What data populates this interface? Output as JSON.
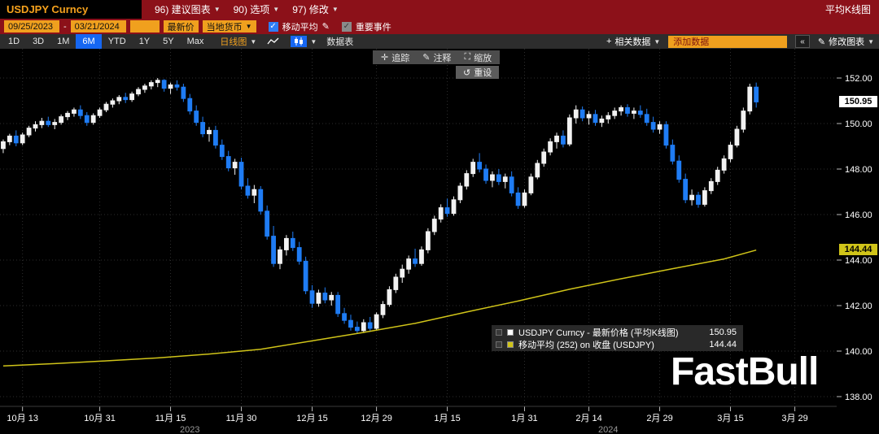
{
  "header": {
    "security": "USDJPY Curncy",
    "menus": [
      "96) 建议图表",
      "90) 选项",
      "97) 修改"
    ],
    "chart_style": "平均K线图"
  },
  "settings_bar": {
    "date_from": "09/25/2023",
    "date_to": "03/21/2024",
    "period_box": "",
    "price_source": "最新价",
    "currency": "当地货币",
    "ma_label": "移动平均",
    "events_label": "重要事件"
  },
  "toolbar": {
    "ranges": [
      "1D",
      "3D",
      "1M",
      "6M",
      "YTD",
      "1Y",
      "5Y",
      "Max"
    ],
    "active_range": "6M",
    "interval": "日线图",
    "table_label": "数据表",
    "related_data": "相关数据",
    "add_data": "添加数据",
    "collapse": "«",
    "modify_chart": "修改图表"
  },
  "chart_overlay_toolbar": {
    "track": "追踪",
    "annotate": "注释",
    "zoom": "缩放",
    "reset": "重设"
  },
  "legend": {
    "series1_label": "USDJPY Curncy - 最新价格 (平均K线图)",
    "series1_value": "150.95",
    "series2_label": "移动平均 (252) on 收盘 (USDJPY)",
    "series2_value": "144.44"
  },
  "axis_boxes": {
    "last_price": "150.95",
    "ma_value": "144.44"
  },
  "watermark": "FastBull",
  "colors": {
    "up": "#f2f2f2",
    "down": "#1f7cf4",
    "ma": "#d0c419",
    "amber": "#f0a01e",
    "active_blue": "#1667f2"
  },
  "chart_data": {
    "type": "candlestick",
    "style": "heikin-ashi",
    "symbol": "USDJPY Curncy",
    "date_range": [
      "09/25/2023",
      "03/21/2024"
    ],
    "last_price": 150.95,
    "ma_period": 252,
    "ma_last": 144.44,
    "ylim": [
      138.0,
      152.0
    ],
    "y_ticks": [
      "152.00",
      "150.00",
      "148.00",
      "146.00",
      "144.00",
      "142.00",
      "140.00",
      "138.00"
    ],
    "x_ticks": {
      "labels": [
        "10月 13",
        "10月 31",
        "11月 15",
        "11月 30",
        "12月 15",
        "12月 29",
        "1月 15",
        "1月 31",
        "2月 14",
        "2月 29",
        "3月 15",
        "3月 29"
      ],
      "indices": [
        3,
        15,
        26,
        37,
        48,
        58,
        69,
        81,
        91,
        102,
        113,
        123
      ]
    },
    "year_labels": [
      {
        "text": "2023",
        "index": 29
      },
      {
        "text": "2024",
        "index": 94
      }
    ],
    "total_slots": 130,
    "candles": [
      [
        148.9,
        149.3,
        148.7,
        149.2
      ],
      [
        149.2,
        149.55,
        149.05,
        149.45
      ],
      [
        149.45,
        149.7,
        149.0,
        149.15
      ],
      [
        149.15,
        149.6,
        149.05,
        149.5
      ],
      [
        149.5,
        149.9,
        149.4,
        149.8
      ],
      [
        149.8,
        150.1,
        149.65,
        149.95
      ],
      [
        149.95,
        150.25,
        149.8,
        150.1
      ],
      [
        150.1,
        150.3,
        149.85,
        149.95
      ],
      [
        149.95,
        150.2,
        149.75,
        150.05
      ],
      [
        150.05,
        150.4,
        149.95,
        150.3
      ],
      [
        150.3,
        150.55,
        150.15,
        150.45
      ],
      [
        150.45,
        150.7,
        150.3,
        150.6
      ],
      [
        150.6,
        150.8,
        150.2,
        150.35
      ],
      [
        150.35,
        150.5,
        149.9,
        150.05
      ],
      [
        150.05,
        150.45,
        149.95,
        150.35
      ],
      [
        150.35,
        150.7,
        150.25,
        150.6
      ],
      [
        150.6,
        150.95,
        150.5,
        150.85
      ],
      [
        150.85,
        151.1,
        150.7,
        151.0
      ],
      [
        151.0,
        151.25,
        150.85,
        151.15
      ],
      [
        151.15,
        151.35,
        150.9,
        151.05
      ],
      [
        151.05,
        151.4,
        150.95,
        151.3
      ],
      [
        151.3,
        151.6,
        151.2,
        151.5
      ],
      [
        151.5,
        151.75,
        151.35,
        151.65
      ],
      [
        151.65,
        151.9,
        151.5,
        151.8
      ],
      [
        151.8,
        152.0,
        151.6,
        151.9
      ],
      [
        151.9,
        151.95,
        151.4,
        151.55
      ],
      [
        151.55,
        151.8,
        151.3,
        151.7
      ],
      [
        151.7,
        151.9,
        151.45,
        151.6
      ],
      [
        151.6,
        151.75,
        150.95,
        151.1
      ],
      [
        151.1,
        151.3,
        150.4,
        150.55
      ],
      [
        150.55,
        150.8,
        149.9,
        150.05
      ],
      [
        150.05,
        150.3,
        149.4,
        149.55
      ],
      [
        149.55,
        149.85,
        149.2,
        149.7
      ],
      [
        149.7,
        149.9,
        148.9,
        149.05
      ],
      [
        149.05,
        149.3,
        148.4,
        148.55
      ],
      [
        148.55,
        148.8,
        147.9,
        148.05
      ],
      [
        148.05,
        148.45,
        147.75,
        148.3
      ],
      [
        148.3,
        148.5,
        147.1,
        147.25
      ],
      [
        147.25,
        147.6,
        146.7,
        146.85
      ],
      [
        146.85,
        147.3,
        146.5,
        147.1
      ],
      [
        147.1,
        147.25,
        146.0,
        146.15
      ],
      [
        146.15,
        146.4,
        144.9,
        145.05
      ],
      [
        145.05,
        145.5,
        143.7,
        143.85
      ],
      [
        143.85,
        144.6,
        143.6,
        144.45
      ],
      [
        144.45,
        145.1,
        144.2,
        144.95
      ],
      [
        144.95,
        145.25,
        144.4,
        144.55
      ],
      [
        144.55,
        144.8,
        143.8,
        143.95
      ],
      [
        143.95,
        144.15,
        142.5,
        142.65
      ],
      [
        142.65,
        142.9,
        141.9,
        142.1
      ],
      [
        142.1,
        142.7,
        141.95,
        142.55
      ],
      [
        142.55,
        142.8,
        142.1,
        142.25
      ],
      [
        142.25,
        142.6,
        142.0,
        142.45
      ],
      [
        142.45,
        142.6,
        141.5,
        141.65
      ],
      [
        141.65,
        141.9,
        141.2,
        141.35
      ],
      [
        141.35,
        141.6,
        140.9,
        141.05
      ],
      [
        141.05,
        141.3,
        140.75,
        140.9
      ],
      [
        140.9,
        141.4,
        140.8,
        141.25
      ],
      [
        141.25,
        141.5,
        140.85,
        141.0
      ],
      [
        141.0,
        141.7,
        140.9,
        141.6
      ],
      [
        141.6,
        142.2,
        141.45,
        142.05
      ],
      [
        142.05,
        142.85,
        141.95,
        142.7
      ],
      [
        142.7,
        143.4,
        142.55,
        143.25
      ],
      [
        143.25,
        143.8,
        143.0,
        143.6
      ],
      [
        143.6,
        144.2,
        143.4,
        144.05
      ],
      [
        144.05,
        144.5,
        143.7,
        143.85
      ],
      [
        143.85,
        144.6,
        143.75,
        144.45
      ],
      [
        144.45,
        145.4,
        144.3,
        145.25
      ],
      [
        145.25,
        145.95,
        145.1,
        145.8
      ],
      [
        145.8,
        146.45,
        145.65,
        146.3
      ],
      [
        146.3,
        146.7,
        145.9,
        146.05
      ],
      [
        146.05,
        146.8,
        145.95,
        146.65
      ],
      [
        146.65,
        147.4,
        146.5,
        147.25
      ],
      [
        147.25,
        147.95,
        147.1,
        147.8
      ],
      [
        147.8,
        148.45,
        147.65,
        148.3
      ],
      [
        148.3,
        148.7,
        147.85,
        148.0
      ],
      [
        148.0,
        148.2,
        147.35,
        147.5
      ],
      [
        147.5,
        147.9,
        147.2,
        147.75
      ],
      [
        147.75,
        148.0,
        147.3,
        147.45
      ],
      [
        147.45,
        147.8,
        147.15,
        147.65
      ],
      [
        147.65,
        147.9,
        146.8,
        146.95
      ],
      [
        146.95,
        147.2,
        146.25,
        146.4
      ],
      [
        146.4,
        147.1,
        146.3,
        146.95
      ],
      [
        146.95,
        147.8,
        146.85,
        147.65
      ],
      [
        147.65,
        148.4,
        147.55,
        148.25
      ],
      [
        148.25,
        148.9,
        148.1,
        148.75
      ],
      [
        148.75,
        149.35,
        148.6,
        149.2
      ],
      [
        149.2,
        149.6,
        148.9,
        149.45
      ],
      [
        149.45,
        149.7,
        148.95,
        149.1
      ],
      [
        149.1,
        150.4,
        149.0,
        150.25
      ],
      [
        150.25,
        150.8,
        150.0,
        150.6
      ],
      [
        150.6,
        150.75,
        150.1,
        150.25
      ],
      [
        150.25,
        150.55,
        149.95,
        150.4
      ],
      [
        150.4,
        150.6,
        149.9,
        150.05
      ],
      [
        150.05,
        150.35,
        149.85,
        150.2
      ],
      [
        150.2,
        150.5,
        150.0,
        150.35
      ],
      [
        150.35,
        150.7,
        150.2,
        150.55
      ],
      [
        150.55,
        150.8,
        150.35,
        150.7
      ],
      [
        150.7,
        150.85,
        150.3,
        150.45
      ],
      [
        150.45,
        150.7,
        150.2,
        150.55
      ],
      [
        150.55,
        150.8,
        150.25,
        150.4
      ],
      [
        150.4,
        150.65,
        149.9,
        150.05
      ],
      [
        150.05,
        150.3,
        149.6,
        149.75
      ],
      [
        149.75,
        150.1,
        149.55,
        149.95
      ],
      [
        149.95,
        150.1,
        148.9,
        149.05
      ],
      [
        149.05,
        149.3,
        148.2,
        148.35
      ],
      [
        148.35,
        148.6,
        147.4,
        147.55
      ],
      [
        147.55,
        147.8,
        146.5,
        146.65
      ],
      [
        146.65,
        147.1,
        146.4,
        146.85
      ],
      [
        146.85,
        147.0,
        146.3,
        146.45
      ],
      [
        146.45,
        147.2,
        146.35,
        147.05
      ],
      [
        147.05,
        147.6,
        146.9,
        147.45
      ],
      [
        147.45,
        148.1,
        147.3,
        147.95
      ],
      [
        147.95,
        148.6,
        147.8,
        148.45
      ],
      [
        148.45,
        149.2,
        148.3,
        149.05
      ],
      [
        149.05,
        149.9,
        148.95,
        149.75
      ],
      [
        149.75,
        150.7,
        149.6,
        150.55
      ],
      [
        150.55,
        151.75,
        150.4,
        151.6
      ],
      [
        151.6,
        151.8,
        150.7,
        150.95
      ]
    ],
    "ma_line": {
      "indices": [
        0,
        8,
        16,
        24,
        32,
        40,
        48,
        56,
        64,
        72,
        80,
        88,
        96,
        104,
        112,
        117
      ],
      "values": [
        139.35,
        139.45,
        139.57,
        139.7,
        139.87,
        140.08,
        140.45,
        140.82,
        141.22,
        141.72,
        142.2,
        142.72,
        143.18,
        143.62,
        144.05,
        144.44
      ]
    }
  }
}
